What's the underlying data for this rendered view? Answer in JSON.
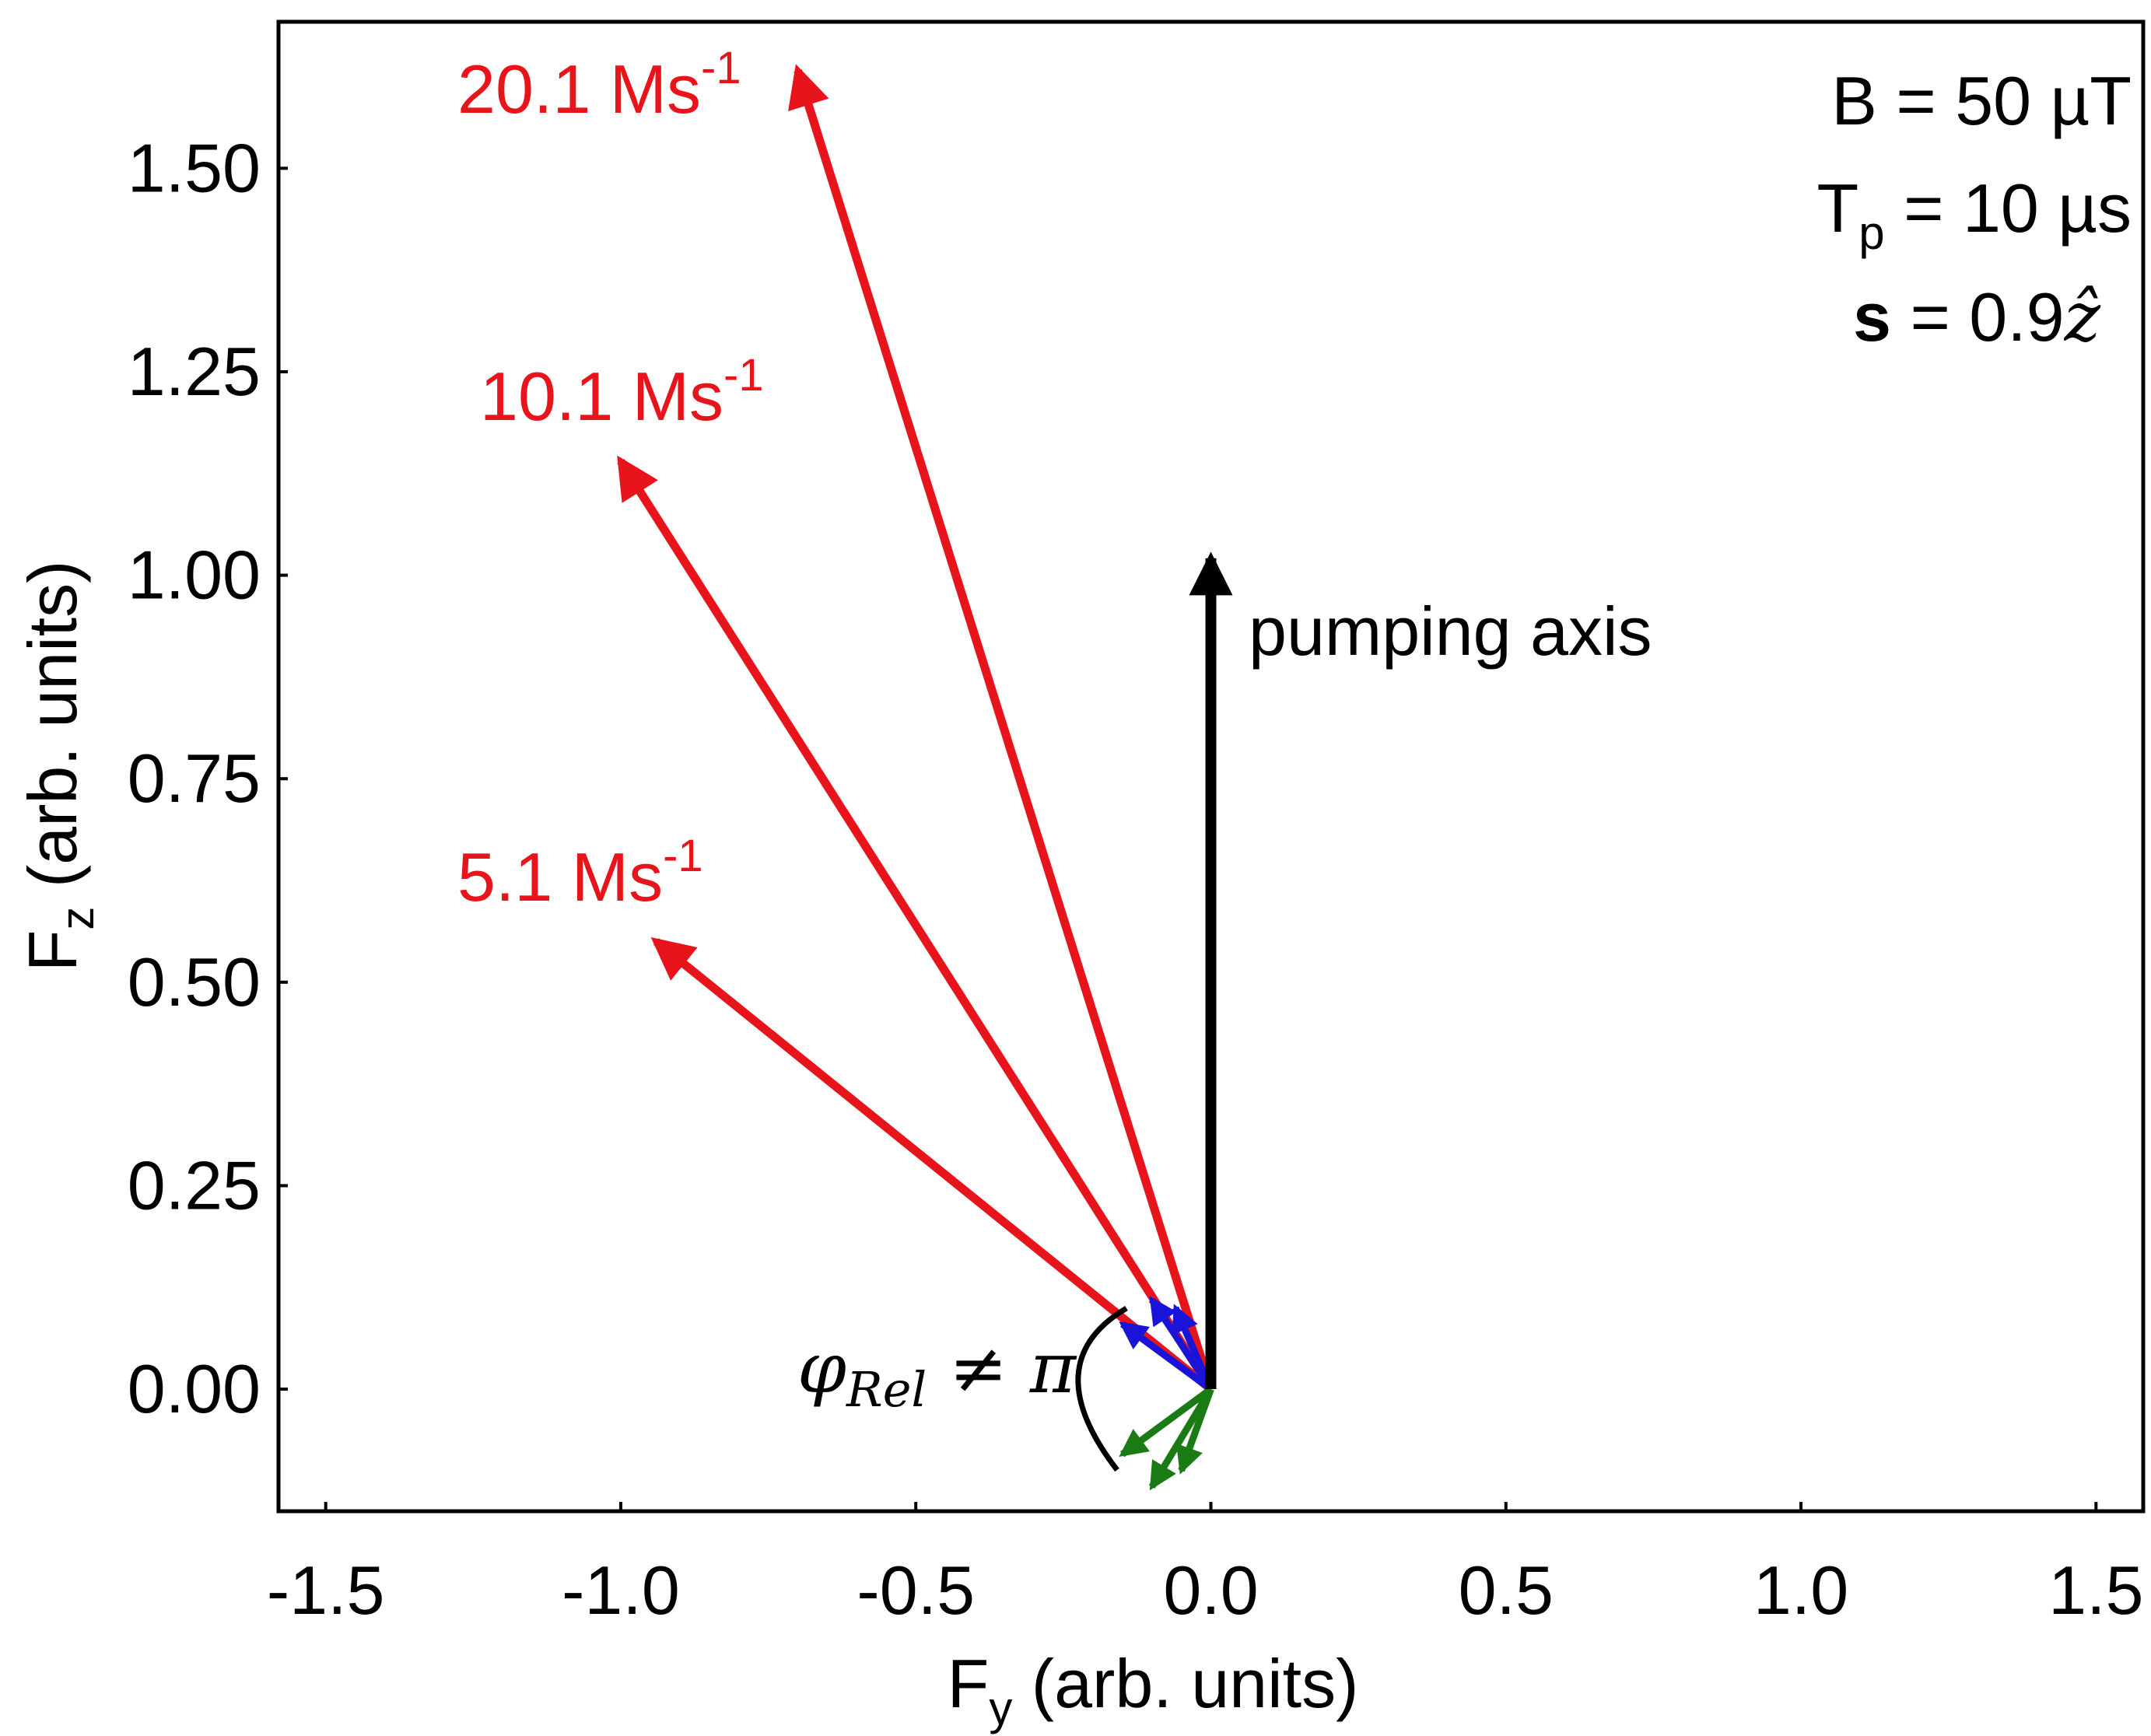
{
  "chart_data": {
    "type": "vector",
    "xlabel": {
      "main": "F",
      "sub": "y",
      "rest": " (arb. units)"
    },
    "ylabel": {
      "main": "F",
      "sub": "z",
      "rest": " (arb. units)"
    },
    "xlim": [
      -1.58,
      1.58
    ],
    "ylim": [
      -0.15,
      1.68
    ],
    "x_ticks": [
      {
        "value": -1.5,
        "label": "-1.5"
      },
      {
        "value": -1.0,
        "label": "-1.0"
      },
      {
        "value": -0.5,
        "label": "-0.5"
      },
      {
        "value": 0.0,
        "label": "0.0"
      },
      {
        "value": 0.5,
        "label": "0.5"
      },
      {
        "value": 1.0,
        "label": "1.0"
      },
      {
        "value": 1.5,
        "label": "1.5"
      }
    ],
    "y_ticks": [
      {
        "value": 0.0,
        "label": "0.00"
      },
      {
        "value": 0.25,
        "label": "0.25"
      },
      {
        "value": 0.5,
        "label": "0.50"
      },
      {
        "value": 0.75,
        "label": "0.75"
      },
      {
        "value": 1.0,
        "label": "1.00"
      },
      {
        "value": 1.25,
        "label": "1.25"
      },
      {
        "value": 1.5,
        "label": "1.50"
      }
    ],
    "pumping_axis": {
      "label": "pumping axis",
      "from": [
        0.0,
        0.0
      ],
      "to": [
        0.0,
        1.04
      ],
      "color": "#000000"
    },
    "rate_vectors": [
      {
        "label": "20.1 Ms",
        "sup": "-1",
        "from": [
          0.0,
          0.0
        ],
        "to": [
          -0.7,
          1.62
        ],
        "color": "#e8141b"
      },
      {
        "label": "10.1 Ms",
        "sup": "-1",
        "from": [
          0.0,
          0.0
        ],
        "to": [
          -1.0,
          1.14
        ],
        "color": "#e8141b"
      },
      {
        "label": "5.1 Ms",
        "sup": "-1",
        "from": [
          0.0,
          0.0
        ],
        "to": [
          -0.94,
          0.55
        ],
        "color": "#e8141b"
      }
    ],
    "blue_vectors": [
      {
        "from": [
          0.0,
          0.0
        ],
        "to": [
          -0.15,
          0.08
        ],
        "color": "#1a14d8"
      },
      {
        "from": [
          0.0,
          0.0
        ],
        "to": [
          -0.1,
          0.11
        ],
        "color": "#1a14d8"
      },
      {
        "from": [
          0.0,
          0.0
        ],
        "to": [
          -0.06,
          0.1
        ],
        "color": "#1a14d8"
      }
    ],
    "green_vectors": [
      {
        "from": [
          0.0,
          0.0
        ],
        "to": [
          -0.15,
          -0.08
        ],
        "color": "#1a7a14"
      },
      {
        "from": [
          0.0,
          0.0
        ],
        "to": [
          -0.1,
          -0.12
        ],
        "color": "#1a7a14"
      },
      {
        "from": [
          0.0,
          0.0
        ],
        "to": [
          -0.05,
          -0.1
        ],
        "color": "#1a7a14"
      }
    ],
    "phase_annotation": {
      "phi": "φ",
      "sub": "Rel",
      "rest": " ≠ π"
    },
    "params": {
      "b_field": "B = 50 µT",
      "tp_main": "T",
      "tp_sub": "p",
      "tp_rest": " = 10 µs",
      "s_bold": "s",
      "s_rest": " = 0.9",
      "s_vec": "ẑ"
    }
  }
}
